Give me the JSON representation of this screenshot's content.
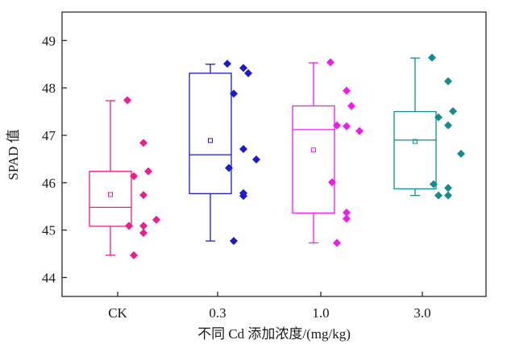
{
  "chart_data": {
    "type": "box",
    "xlabel": "不同 Cd 添加浓度/(mg/kg)",
    "ylabel": "SPAD 值",
    "ylim": [
      43.6,
      49.6
    ],
    "yticks": [
      44,
      45,
      46,
      47,
      48,
      49
    ],
    "categories": [
      "CK",
      "0.3",
      "1.0",
      "3.0"
    ],
    "grid": false,
    "series": [
      {
        "category": "CK",
        "color": "#ee1c8c",
        "box": {
          "whisker_low": 44.47,
          "q1": 45.08,
          "median": 45.48,
          "q3": 46.24,
          "whisker_high": 47.73,
          "mean": 45.75
        },
        "points": [
          47.74,
          46.84,
          46.24,
          46.14,
          45.74,
          45.22,
          45.09,
          45.09,
          44.94,
          44.47
        ]
      },
      {
        "category": "0.3",
        "color": "#1a1acf",
        "box": {
          "whisker_low": 44.77,
          "q1": 45.77,
          "median": 46.59,
          "q3": 48.31,
          "whisker_high": 48.5,
          "mean": 46.89
        },
        "points": [
          48.51,
          48.42,
          48.31,
          47.88,
          46.71,
          46.49,
          46.31,
          45.78,
          45.72,
          44.77
        ]
      },
      {
        "category": "1.0",
        "color": "#ee1cee",
        "box": {
          "whisker_low": 44.73,
          "q1": 45.36,
          "median": 47.12,
          "q3": 47.62,
          "whisker_high": 48.53,
          "mean": 46.69
        },
        "points": [
          48.54,
          47.94,
          47.62,
          47.21,
          47.19,
          47.09,
          46.01,
          45.37,
          45.24,
          44.73
        ]
      },
      {
        "category": "3.0",
        "color": "#128d8d",
        "box": {
          "whisker_low": 45.73,
          "q1": 45.87,
          "median": 46.9,
          "q3": 47.5,
          "whisker_high": 48.63,
          "mean": 46.87
        },
        "points": [
          48.64,
          48.14,
          47.51,
          47.38,
          47.21,
          46.61,
          45.97,
          45.89,
          45.73,
          45.73
        ]
      }
    ]
  }
}
